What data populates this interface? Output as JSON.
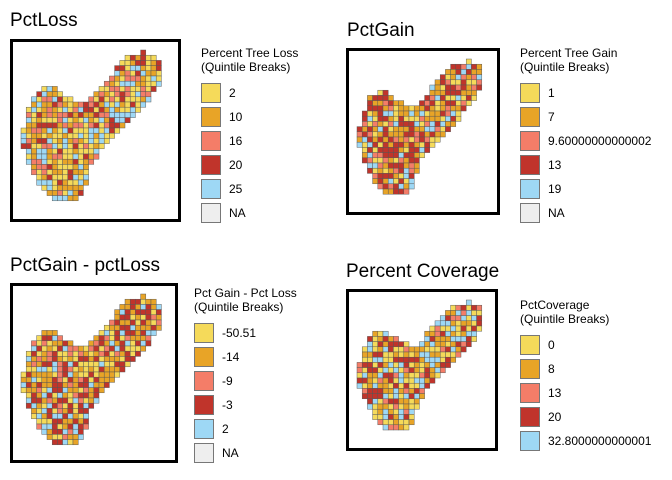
{
  "panels": [
    {
      "id": "pctloss",
      "title": "PctLoss",
      "legend_title": [
        "Percent Tree Loss",
        "(Quintile Breaks)"
      ],
      "legend": [
        {
          "label": "2",
          "color": "#F5DA5A"
        },
        {
          "label": "10",
          "color": "#E8A427"
        },
        {
          "label": "16",
          "color": "#F47D68"
        },
        {
          "label": "20",
          "color": "#C0342B"
        },
        {
          "label": "25",
          "color": "#9ED8F5"
        },
        {
          "label": "NA",
          "color": "#EEEEEE"
        }
      ],
      "class_weights": [
        0.3,
        0.22,
        0.15,
        0.15,
        0.18
      ]
    },
    {
      "id": "pctgain",
      "title": "PctGain",
      "legend_title": [
        "Percent Tree Gain",
        "(Quintile Breaks)"
      ],
      "legend": [
        {
          "label": "1",
          "color": "#F5DA5A"
        },
        {
          "label": "7",
          "color": "#E8A427"
        },
        {
          "label": "9.60000000000002",
          "color": "#F47D68"
        },
        {
          "label": "13",
          "color": "#C0342B"
        },
        {
          "label": "19",
          "color": "#9ED8F5"
        },
        {
          "label": "NA",
          "color": "#EEEEEE"
        }
      ],
      "class_weights": [
        0.18,
        0.28,
        0.12,
        0.3,
        0.12
      ]
    },
    {
      "id": "gainloss",
      "title": "PctGain - pctLoss",
      "legend_title": [
        "Pct Gain - Pct Loss",
        "(Quintile Breaks)"
      ],
      "legend": [
        {
          "label": "-50.51",
          "color": "#F5DA5A"
        },
        {
          "label": "-14",
          "color": "#E8A427"
        },
        {
          "label": "-9",
          "color": "#F47D68"
        },
        {
          "label": "-3",
          "color": "#C0342B"
        },
        {
          "label": "2",
          "color": "#9ED8F5"
        },
        {
          "label": "NA",
          "color": "#EEEEEE"
        }
      ],
      "class_weights": [
        0.25,
        0.25,
        0.12,
        0.25,
        0.13
      ]
    },
    {
      "id": "coverage",
      "title": "Percent Coverage",
      "legend_title": [
        "PctCoverage",
        "(Quintile Breaks)"
      ],
      "legend": [
        {
          "label": "0",
          "color": "#F5DA5A"
        },
        {
          "label": "8",
          "color": "#E8A427"
        },
        {
          "label": "13",
          "color": "#F47D68"
        },
        {
          "label": "20",
          "color": "#C0342B"
        },
        {
          "label": "32.8000000000001",
          "color": "#9ED8F5"
        }
      ],
      "class_weights": [
        0.28,
        0.25,
        0.1,
        0.22,
        0.15
      ]
    }
  ]
}
